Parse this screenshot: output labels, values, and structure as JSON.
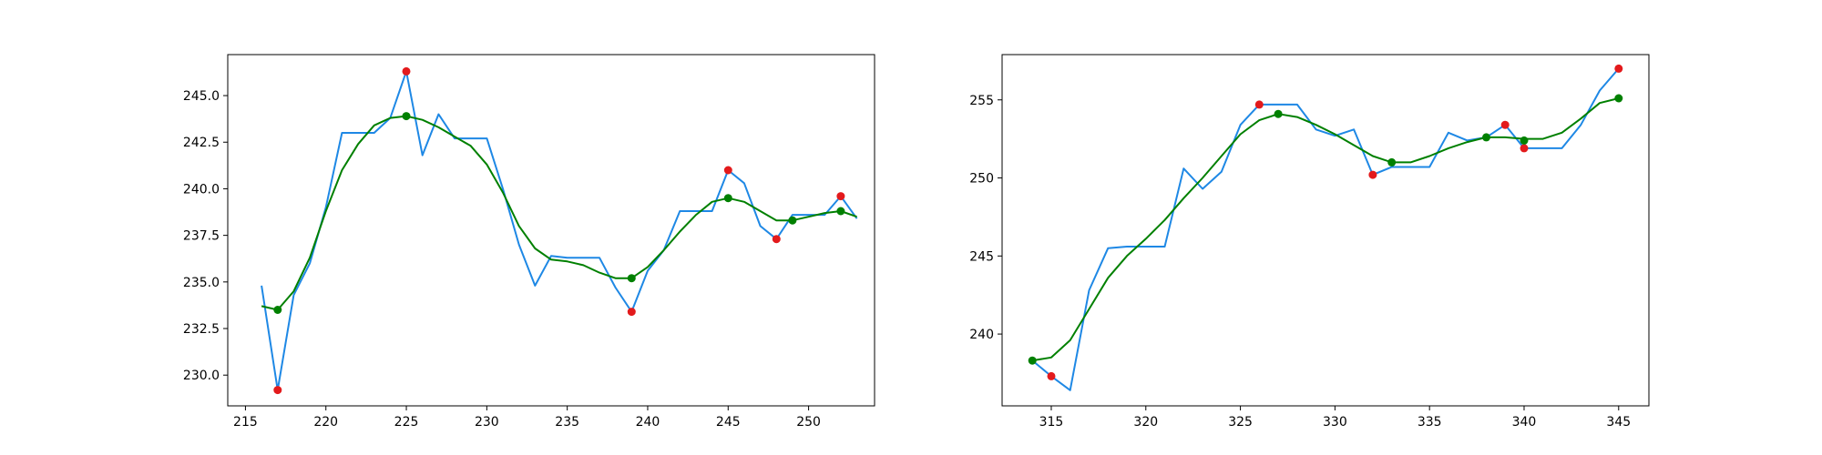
{
  "chart_data": [
    {
      "type": "line",
      "title": "",
      "xlabel": "",
      "ylabel": "",
      "xlim": [
        213.9,
        254.1
      ],
      "ylim": [
        228.35,
        247.2
      ],
      "grid": false,
      "x_ticks": [
        215,
        220,
        225,
        230,
        235,
        240,
        245,
        250
      ],
      "y_ticks": [
        230.0,
        232.5,
        235.0,
        237.5,
        240.0,
        242.5,
        245.0
      ],
      "x_tick_labels": [
        "215",
        "220",
        "225",
        "230",
        "235",
        "240",
        "245",
        "250"
      ],
      "y_tick_labels": [
        "230.0",
        "232.5",
        "235.0",
        "237.5",
        "240.0",
        "242.5",
        "245.0"
      ],
      "series": [
        {
          "color": "#1e88e5",
          "style": "line",
          "x": [
            216,
            217,
            218,
            219,
            220,
            221,
            222,
            223,
            224,
            225,
            226,
            227,
            228,
            229,
            230,
            231,
            232,
            233,
            234,
            235,
            236,
            237,
            238,
            239,
            240,
            241,
            242,
            243,
            244,
            245,
            246,
            247,
            248,
            249,
            250,
            251,
            252,
            253
          ],
          "y": [
            234.8,
            229.2,
            234.3,
            236.0,
            239.0,
            243.0,
            243.0,
            243.0,
            243.8,
            246.3,
            241.8,
            244.0,
            242.7,
            242.7,
            242.7,
            240.0,
            237.0,
            234.8,
            236.4,
            236.3,
            236.3,
            236.3,
            234.7,
            233.4,
            235.6,
            236.7,
            238.8,
            238.8,
            238.8,
            241.0,
            240.3,
            238.0,
            237.3,
            238.6,
            238.6,
            238.6,
            239.6,
            238.4
          ]
        },
        {
          "color": "#008000",
          "style": "line",
          "x": [
            216,
            217,
            218,
            219,
            220,
            221,
            222,
            223,
            224,
            225,
            226,
            227,
            228,
            229,
            230,
            231,
            232,
            233,
            234,
            235,
            236,
            237,
            238,
            239,
            240,
            241,
            242,
            243,
            244,
            245,
            246,
            247,
            248,
            249,
            250,
            251,
            252,
            253
          ],
          "y": [
            233.7,
            233.5,
            234.5,
            236.3,
            238.8,
            241.0,
            242.4,
            243.4,
            243.8,
            243.9,
            243.7,
            243.3,
            242.8,
            242.3,
            241.3,
            239.8,
            238.0,
            236.8,
            236.2,
            236.1,
            235.9,
            235.5,
            235.2,
            235.2,
            235.8,
            236.7,
            237.7,
            238.6,
            239.3,
            239.5,
            239.3,
            238.8,
            238.3,
            238.3,
            238.5,
            238.7,
            238.8,
            238.5
          ]
        },
        {
          "color": "#e31a1c",
          "style": "points",
          "x": [
            217,
            225,
            239,
            245,
            248,
            252
          ],
          "y": [
            229.2,
            246.3,
            233.4,
            241.0,
            237.3,
            239.6
          ]
        },
        {
          "color": "#008000",
          "style": "points",
          "x": [
            217,
            225,
            239,
            245,
            249,
            252
          ],
          "y": [
            233.5,
            243.9,
            235.2,
            239.5,
            238.3,
            238.8
          ]
        }
      ]
    },
    {
      "type": "line",
      "title": "",
      "xlabel": "",
      "ylabel": "",
      "xlim": [
        312.4,
        346.6
      ],
      "ylim": [
        235.4,
        257.9
      ],
      "grid": false,
      "x_ticks": [
        315,
        320,
        325,
        330,
        335,
        340,
        345
      ],
      "y_ticks": [
        240,
        245,
        250,
        255
      ],
      "x_tick_labels": [
        "315",
        "320",
        "325",
        "330",
        "335",
        "340",
        "345"
      ],
      "y_tick_labels": [
        "240",
        "245",
        "250",
        "255"
      ],
      "series": [
        {
          "color": "#1e88e5",
          "style": "line",
          "x": [
            314,
            315,
            316,
            317,
            318,
            319,
            320,
            321,
            322,
            323,
            324,
            325,
            326,
            327,
            328,
            329,
            330,
            331,
            332,
            333,
            334,
            335,
            336,
            337,
            338,
            339,
            340,
            341,
            342,
            343,
            344,
            345
          ],
          "y": [
            238.3,
            237.3,
            236.4,
            242.8,
            245.5,
            245.6,
            245.6,
            245.6,
            250.6,
            249.3,
            250.4,
            253.4,
            254.7,
            254.7,
            254.7,
            253.1,
            252.7,
            253.1,
            250.2,
            250.7,
            250.7,
            250.7,
            252.9,
            252.4,
            252.6,
            253.4,
            251.9,
            251.9,
            251.9,
            253.4,
            255.6,
            257.0
          ]
        },
        {
          "color": "#008000",
          "style": "line",
          "x": [
            314,
            315,
            316,
            317,
            318,
            319,
            320,
            321,
            322,
            323,
            324,
            325,
            326,
            327,
            328,
            329,
            330,
            331,
            332,
            333,
            334,
            335,
            336,
            337,
            338,
            339,
            340,
            341,
            342,
            343,
            344,
            345
          ],
          "y": [
            238.3,
            238.5,
            239.6,
            241.6,
            243.6,
            245.0,
            246.1,
            247.3,
            248.7,
            250.0,
            251.4,
            252.8,
            253.7,
            254.1,
            253.9,
            253.4,
            252.8,
            252.1,
            251.4,
            251.0,
            251.0,
            251.4,
            251.9,
            252.3,
            252.6,
            252.6,
            252.5,
            252.5,
            252.9,
            253.8,
            254.8,
            255.1
          ]
        },
        {
          "color": "#e31a1c",
          "style": "points",
          "x": [
            315,
            326,
            332,
            339,
            340,
            345
          ],
          "y": [
            237.3,
            254.7,
            250.2,
            253.4,
            251.9,
            257.0
          ]
        },
        {
          "color": "#008000",
          "style": "points",
          "x": [
            314,
            327,
            333,
            338,
            340,
            345
          ],
          "y": [
            238.3,
            254.1,
            251.0,
            252.6,
            252.4,
            255.1
          ]
        }
      ]
    }
  ]
}
